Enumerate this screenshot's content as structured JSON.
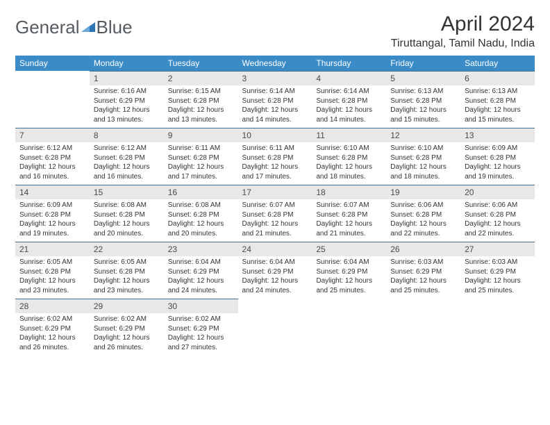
{
  "brand": {
    "word1": "General",
    "word2": "Blue"
  },
  "title": "April 2024",
  "location": "Tiruttangal, Tamil Nadu, India",
  "colors": {
    "header_bg": "#3b8bc7",
    "header_text": "#ffffff",
    "daybar_bg": "#e8e8e8",
    "daybar_border": "#3b6f94",
    "text": "#333333",
    "logo_text": "#555b61",
    "logo_accent": "#2d74b5"
  },
  "daynames": [
    "Sunday",
    "Monday",
    "Tuesday",
    "Wednesday",
    "Thursday",
    "Friday",
    "Saturday"
  ],
  "layout": {
    "first_weekday_index": 1,
    "num_days": 30,
    "cell_fontsize": 10,
    "header_fontsize": 12,
    "title_fontsize": 30,
    "location_fontsize": 16
  },
  "days": [
    {
      "n": 1,
      "sunrise": "6:16 AM",
      "sunset": "6:29 PM",
      "daylight": "12 hours and 13 minutes."
    },
    {
      "n": 2,
      "sunrise": "6:15 AM",
      "sunset": "6:28 PM",
      "daylight": "12 hours and 13 minutes."
    },
    {
      "n": 3,
      "sunrise": "6:14 AM",
      "sunset": "6:28 PM",
      "daylight": "12 hours and 14 minutes."
    },
    {
      "n": 4,
      "sunrise": "6:14 AM",
      "sunset": "6:28 PM",
      "daylight": "12 hours and 14 minutes."
    },
    {
      "n": 5,
      "sunrise": "6:13 AM",
      "sunset": "6:28 PM",
      "daylight": "12 hours and 15 minutes."
    },
    {
      "n": 6,
      "sunrise": "6:13 AM",
      "sunset": "6:28 PM",
      "daylight": "12 hours and 15 minutes."
    },
    {
      "n": 7,
      "sunrise": "6:12 AM",
      "sunset": "6:28 PM",
      "daylight": "12 hours and 16 minutes."
    },
    {
      "n": 8,
      "sunrise": "6:12 AM",
      "sunset": "6:28 PM",
      "daylight": "12 hours and 16 minutes."
    },
    {
      "n": 9,
      "sunrise": "6:11 AM",
      "sunset": "6:28 PM",
      "daylight": "12 hours and 17 minutes."
    },
    {
      "n": 10,
      "sunrise": "6:11 AM",
      "sunset": "6:28 PM",
      "daylight": "12 hours and 17 minutes."
    },
    {
      "n": 11,
      "sunrise": "6:10 AM",
      "sunset": "6:28 PM",
      "daylight": "12 hours and 18 minutes."
    },
    {
      "n": 12,
      "sunrise": "6:10 AM",
      "sunset": "6:28 PM",
      "daylight": "12 hours and 18 minutes."
    },
    {
      "n": 13,
      "sunrise": "6:09 AM",
      "sunset": "6:28 PM",
      "daylight": "12 hours and 19 minutes."
    },
    {
      "n": 14,
      "sunrise": "6:09 AM",
      "sunset": "6:28 PM",
      "daylight": "12 hours and 19 minutes."
    },
    {
      "n": 15,
      "sunrise": "6:08 AM",
      "sunset": "6:28 PM",
      "daylight": "12 hours and 20 minutes."
    },
    {
      "n": 16,
      "sunrise": "6:08 AM",
      "sunset": "6:28 PM",
      "daylight": "12 hours and 20 minutes."
    },
    {
      "n": 17,
      "sunrise": "6:07 AM",
      "sunset": "6:28 PM",
      "daylight": "12 hours and 21 minutes."
    },
    {
      "n": 18,
      "sunrise": "6:07 AM",
      "sunset": "6:28 PM",
      "daylight": "12 hours and 21 minutes."
    },
    {
      "n": 19,
      "sunrise": "6:06 AM",
      "sunset": "6:28 PM",
      "daylight": "12 hours and 22 minutes."
    },
    {
      "n": 20,
      "sunrise": "6:06 AM",
      "sunset": "6:28 PM",
      "daylight": "12 hours and 22 minutes."
    },
    {
      "n": 21,
      "sunrise": "6:05 AM",
      "sunset": "6:28 PM",
      "daylight": "12 hours and 23 minutes."
    },
    {
      "n": 22,
      "sunrise": "6:05 AM",
      "sunset": "6:28 PM",
      "daylight": "12 hours and 23 minutes."
    },
    {
      "n": 23,
      "sunrise": "6:04 AM",
      "sunset": "6:29 PM",
      "daylight": "12 hours and 24 minutes."
    },
    {
      "n": 24,
      "sunrise": "6:04 AM",
      "sunset": "6:29 PM",
      "daylight": "12 hours and 24 minutes."
    },
    {
      "n": 25,
      "sunrise": "6:04 AM",
      "sunset": "6:29 PM",
      "daylight": "12 hours and 25 minutes."
    },
    {
      "n": 26,
      "sunrise": "6:03 AM",
      "sunset": "6:29 PM",
      "daylight": "12 hours and 25 minutes."
    },
    {
      "n": 27,
      "sunrise": "6:03 AM",
      "sunset": "6:29 PM",
      "daylight": "12 hours and 25 minutes."
    },
    {
      "n": 28,
      "sunrise": "6:02 AM",
      "sunset": "6:29 PM",
      "daylight": "12 hours and 26 minutes."
    },
    {
      "n": 29,
      "sunrise": "6:02 AM",
      "sunset": "6:29 PM",
      "daylight": "12 hours and 26 minutes."
    },
    {
      "n": 30,
      "sunrise": "6:02 AM",
      "sunset": "6:29 PM",
      "daylight": "12 hours and 27 minutes."
    }
  ],
  "labels": {
    "sunrise": "Sunrise:",
    "sunset": "Sunset:",
    "daylight": "Daylight:"
  }
}
